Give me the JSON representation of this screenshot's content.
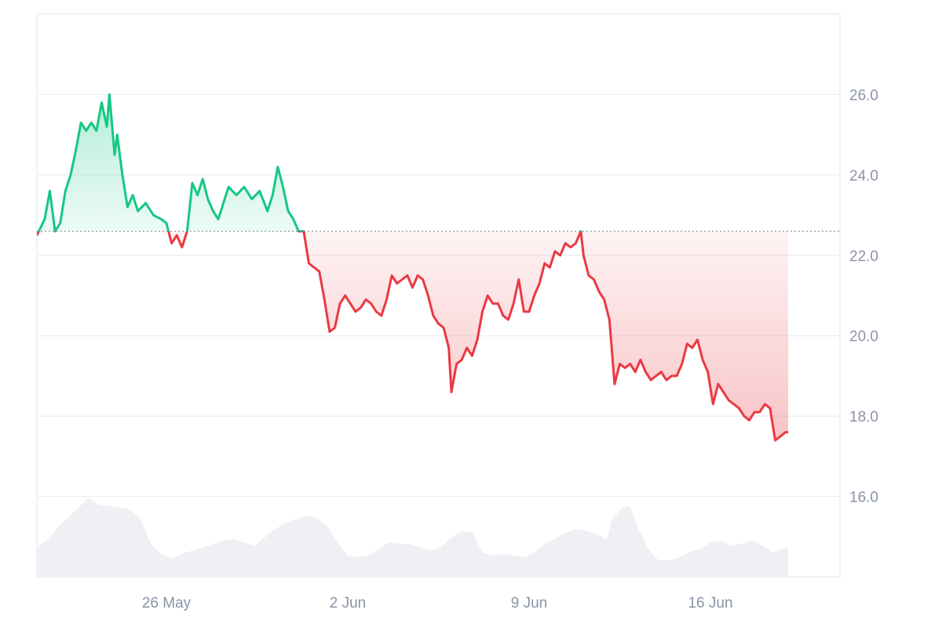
{
  "chart_data": {
    "type": "area",
    "title": "",
    "xlabel": "",
    "ylabel": "",
    "baseline": 22.6,
    "ylim": [
      14.0,
      28.0
    ],
    "y_ticks": [
      16.0,
      18.0,
      20.0,
      22.0,
      24.0,
      26.0
    ],
    "y_tick_labels": [
      "16.0",
      "18.0",
      "20.0",
      "22.0",
      "24.0",
      "26.0"
    ],
    "x_ticks": [
      {
        "day": 26,
        "label": "26 May"
      },
      {
        "day": 33,
        "label": "2 Jun"
      },
      {
        "day": 40,
        "label": "9 Jun"
      },
      {
        "day": 47,
        "label": "16 Jun"
      }
    ],
    "x_range_day": [
      21.0,
      52.0
    ],
    "colors": {
      "up": "#16c784",
      "down": "#ea3943",
      "grid": "#eceef2",
      "baseline": "#8a8f99",
      "volume": "#eef0f3",
      "label": "#8a93a6"
    },
    "series": [
      {
        "values": [
          [
            21.0,
            22.5
          ],
          [
            21.3,
            22.9
          ],
          [
            21.5,
            23.6
          ],
          [
            21.7,
            22.6
          ],
          [
            21.9,
            22.8
          ],
          [
            22.1,
            23.6
          ],
          [
            22.3,
            24.0
          ],
          [
            22.5,
            24.6
          ],
          [
            22.7,
            25.3
          ],
          [
            22.9,
            25.1
          ],
          [
            23.1,
            25.3
          ],
          [
            23.3,
            25.1
          ],
          [
            23.5,
            25.8
          ],
          [
            23.7,
            25.2
          ],
          [
            23.8,
            26.0
          ],
          [
            24.0,
            24.5
          ],
          [
            24.1,
            25.0
          ],
          [
            24.3,
            24.0
          ],
          [
            24.5,
            23.2
          ],
          [
            24.7,
            23.5
          ],
          [
            24.9,
            23.1
          ],
          [
            25.2,
            23.3
          ],
          [
            25.5,
            23.0
          ],
          [
            25.8,
            22.9
          ],
          [
            26.0,
            22.8
          ],
          [
            26.2,
            22.3
          ],
          [
            26.4,
            22.5
          ],
          [
            26.6,
            22.2
          ],
          [
            26.8,
            22.6
          ],
          [
            27.0,
            23.8
          ],
          [
            27.2,
            23.5
          ],
          [
            27.4,
            23.9
          ],
          [
            27.6,
            23.4
          ],
          [
            27.8,
            23.1
          ],
          [
            28.0,
            22.9
          ],
          [
            28.2,
            23.3
          ],
          [
            28.4,
            23.7
          ],
          [
            28.7,
            23.5
          ],
          [
            29.0,
            23.7
          ],
          [
            29.3,
            23.4
          ],
          [
            29.6,
            23.6
          ],
          [
            29.9,
            23.1
          ],
          [
            30.1,
            23.5
          ],
          [
            30.3,
            24.2
          ],
          [
            30.5,
            23.7
          ],
          [
            30.7,
            23.1
          ],
          [
            30.9,
            22.9
          ],
          [
            31.1,
            22.6
          ],
          [
            31.3,
            22.6
          ],
          [
            31.5,
            21.8
          ],
          [
            31.7,
            21.7
          ],
          [
            31.9,
            21.6
          ],
          [
            32.1,
            20.9
          ],
          [
            32.3,
            20.1
          ],
          [
            32.5,
            20.2
          ],
          [
            32.7,
            20.8
          ],
          [
            32.9,
            21.0
          ],
          [
            33.1,
            20.8
          ],
          [
            33.3,
            20.6
          ],
          [
            33.5,
            20.7
          ],
          [
            33.7,
            20.9
          ],
          [
            33.9,
            20.8
          ],
          [
            34.1,
            20.6
          ],
          [
            34.3,
            20.5
          ],
          [
            34.5,
            20.9
          ],
          [
            34.7,
            21.5
          ],
          [
            34.9,
            21.3
          ],
          [
            35.1,
            21.4
          ],
          [
            35.3,
            21.5
          ],
          [
            35.5,
            21.2
          ],
          [
            35.7,
            21.5
          ],
          [
            35.9,
            21.4
          ],
          [
            36.1,
            21.0
          ],
          [
            36.3,
            20.5
          ],
          [
            36.5,
            20.3
          ],
          [
            36.7,
            20.2
          ],
          [
            36.9,
            19.7
          ],
          [
            37.0,
            18.6
          ],
          [
            37.2,
            19.3
          ],
          [
            37.4,
            19.4
          ],
          [
            37.6,
            19.7
          ],
          [
            37.8,
            19.5
          ],
          [
            38.0,
            19.9
          ],
          [
            38.2,
            20.6
          ],
          [
            38.4,
            21.0
          ],
          [
            38.6,
            20.8
          ],
          [
            38.8,
            20.8
          ],
          [
            39.0,
            20.5
          ],
          [
            39.2,
            20.4
          ],
          [
            39.4,
            20.8
          ],
          [
            39.6,
            21.4
          ],
          [
            39.8,
            20.6
          ],
          [
            40.0,
            20.6
          ],
          [
            40.2,
            21.0
          ],
          [
            40.4,
            21.3
          ],
          [
            40.6,
            21.8
          ],
          [
            40.8,
            21.7
          ],
          [
            41.0,
            22.1
          ],
          [
            41.2,
            22.0
          ],
          [
            41.4,
            22.3
          ],
          [
            41.6,
            22.2
          ],
          [
            41.8,
            22.3
          ],
          [
            42.0,
            22.6
          ],
          [
            42.1,
            22.0
          ],
          [
            42.3,
            21.5
          ],
          [
            42.5,
            21.4
          ],
          [
            42.7,
            21.1
          ],
          [
            42.9,
            20.9
          ],
          [
            43.1,
            20.4
          ],
          [
            43.3,
            18.8
          ],
          [
            43.5,
            19.3
          ],
          [
            43.7,
            19.2
          ],
          [
            43.9,
            19.3
          ],
          [
            44.1,
            19.1
          ],
          [
            44.3,
            19.4
          ],
          [
            44.5,
            19.1
          ],
          [
            44.7,
            18.9
          ],
          [
            44.9,
            19.0
          ],
          [
            45.1,
            19.1
          ],
          [
            45.3,
            18.9
          ],
          [
            45.5,
            19.0
          ],
          [
            45.7,
            19.0
          ],
          [
            45.9,
            19.3
          ],
          [
            46.1,
            19.8
          ],
          [
            46.3,
            19.7
          ],
          [
            46.5,
            19.9
          ],
          [
            46.7,
            19.4
          ],
          [
            46.9,
            19.1
          ],
          [
            47.1,
            18.3
          ],
          [
            47.3,
            18.8
          ],
          [
            47.5,
            18.6
          ],
          [
            47.7,
            18.4
          ],
          [
            47.9,
            18.3
          ],
          [
            48.1,
            18.2
          ],
          [
            48.3,
            18.0
          ],
          [
            48.5,
            17.9
          ],
          [
            48.7,
            18.1
          ],
          [
            48.9,
            18.1
          ],
          [
            49.1,
            18.3
          ],
          [
            49.3,
            18.2
          ],
          [
            49.5,
            17.4
          ],
          [
            49.7,
            17.5
          ],
          [
            49.9,
            17.6
          ],
          [
            50.0,
            17.6
          ]
        ]
      }
    ],
    "volume": [
      [
        21.0,
        0.35
      ],
      [
        21.4,
        0.45
      ],
      [
        21.8,
        0.6
      ],
      [
        22.2,
        0.72
      ],
      [
        22.6,
        0.84
      ],
      [
        23.0,
        0.96
      ],
      [
        23.4,
        0.88
      ],
      [
        23.8,
        0.86
      ],
      [
        24.2,
        0.84
      ],
      [
        24.6,
        0.82
      ],
      [
        25.0,
        0.7
      ],
      [
        25.4,
        0.4
      ],
      [
        25.8,
        0.28
      ],
      [
        26.2,
        0.22
      ],
      [
        26.6,
        0.28
      ],
      [
        27.0,
        0.32
      ],
      [
        27.4,
        0.36
      ],
      [
        27.8,
        0.4
      ],
      [
        28.2,
        0.44
      ],
      [
        28.6,
        0.46
      ],
      [
        29.0,
        0.42
      ],
      [
        29.4,
        0.38
      ],
      [
        29.8,
        0.48
      ],
      [
        30.2,
        0.58
      ],
      [
        30.6,
        0.66
      ],
      [
        31.0,
        0.7
      ],
      [
        31.4,
        0.74
      ],
      [
        31.8,
        0.72
      ],
      [
        32.2,
        0.62
      ],
      [
        32.6,
        0.42
      ],
      [
        33.0,
        0.26
      ],
      [
        33.4,
        0.24
      ],
      [
        33.8,
        0.26
      ],
      [
        34.2,
        0.34
      ],
      [
        34.6,
        0.42
      ],
      [
        35.0,
        0.4
      ],
      [
        35.4,
        0.4
      ],
      [
        35.8,
        0.36
      ],
      [
        36.2,
        0.32
      ],
      [
        36.6,
        0.36
      ],
      [
        37.0,
        0.48
      ],
      [
        37.4,
        0.56
      ],
      [
        37.8,
        0.54
      ],
      [
        38.2,
        0.3
      ],
      [
        38.6,
        0.26
      ],
      [
        39.0,
        0.28
      ],
      [
        39.4,
        0.26
      ],
      [
        39.8,
        0.24
      ],
      [
        40.2,
        0.3
      ],
      [
        40.6,
        0.4
      ],
      [
        41.0,
        0.46
      ],
      [
        41.4,
        0.54
      ],
      [
        41.8,
        0.58
      ],
      [
        42.2,
        0.56
      ],
      [
        42.6,
        0.52
      ],
      [
        43.0,
        0.46
      ],
      [
        43.2,
        0.7
      ],
      [
        43.6,
        0.84
      ],
      [
        43.9,
        0.86
      ],
      [
        44.2,
        0.6
      ],
      [
        44.6,
        0.34
      ],
      [
        45.0,
        0.2
      ],
      [
        45.4,
        0.2
      ],
      [
        45.8,
        0.24
      ],
      [
        46.2,
        0.3
      ],
      [
        46.6,
        0.34
      ],
      [
        47.0,
        0.42
      ],
      [
        47.4,
        0.44
      ],
      [
        47.8,
        0.38
      ],
      [
        48.2,
        0.4
      ],
      [
        48.6,
        0.44
      ],
      [
        49.0,
        0.38
      ],
      [
        49.4,
        0.3
      ],
      [
        49.8,
        0.34
      ],
      [
        50.0,
        0.36
      ]
    ]
  }
}
